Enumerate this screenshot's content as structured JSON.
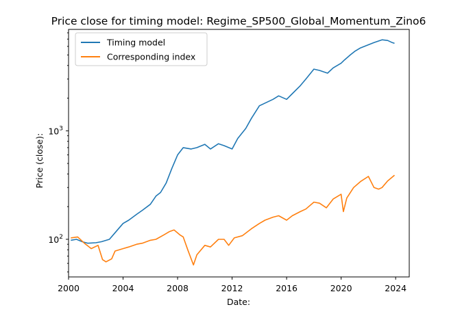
{
  "chart_data": {
    "type": "line",
    "title": "Price close for timing model: Regime_SP500_Global_Momentum_Zino6",
    "xlabel": "Date:",
    "ylabel": "Price (close):",
    "yscale": "log",
    "xlim": [
      "2000-01-01",
      "2024-12-31"
    ],
    "ylim": [
      45,
      8600
    ],
    "x_ticks": [
      "2000",
      "2004",
      "2008",
      "2012",
      "2016",
      "2020",
      "2024"
    ],
    "y_ticks": [
      {
        "base": "10",
        "exp": "2",
        "value": 100
      },
      {
        "base": "10",
        "exp": "3",
        "value": 1000
      }
    ],
    "legend": {
      "position": "top-left"
    },
    "grid": false,
    "series": [
      {
        "name": "Timing model",
        "color": "#1f77b4",
        "points": [
          [
            "2000-03-01",
            98
          ],
          [
            "2000-08-01",
            100
          ],
          [
            "2001-01-01",
            95
          ],
          [
            "2001-06-01",
            92
          ],
          [
            "2002-01-01",
            93
          ],
          [
            "2002-06-01",
            95
          ],
          [
            "2003-01-01",
            100
          ],
          [
            "2003-06-01",
            115
          ],
          [
            "2004-01-01",
            140
          ],
          [
            "2004-06-01",
            150
          ],
          [
            "2005-01-01",
            170
          ],
          [
            "2005-06-01",
            185
          ],
          [
            "2006-01-01",
            210
          ],
          [
            "2006-06-01",
            250
          ],
          [
            "2006-10-01",
            270
          ],
          [
            "2007-03-01",
            330
          ],
          [
            "2007-08-01",
            450
          ],
          [
            "2008-01-01",
            600
          ],
          [
            "2008-06-01",
            700
          ],
          [
            "2009-01-01",
            680
          ],
          [
            "2009-06-01",
            700
          ],
          [
            "2010-01-01",
            750
          ],
          [
            "2010-06-01",
            680
          ],
          [
            "2011-01-01",
            760
          ],
          [
            "2011-06-01",
            730
          ],
          [
            "2012-01-01",
            680
          ],
          [
            "2012-06-01",
            850
          ],
          [
            "2013-01-01",
            1050
          ],
          [
            "2013-06-01",
            1300
          ],
          [
            "2014-01-01",
            1700
          ],
          [
            "2014-06-01",
            1800
          ],
          [
            "2015-01-01",
            1950
          ],
          [
            "2015-06-01",
            2100
          ],
          [
            "2016-01-01",
            1950
          ],
          [
            "2016-06-01",
            2200
          ],
          [
            "2017-01-01",
            2600
          ],
          [
            "2017-06-01",
            3000
          ],
          [
            "2018-01-01",
            3700
          ],
          [
            "2018-06-01",
            3600
          ],
          [
            "2019-01-01",
            3400
          ],
          [
            "2019-06-01",
            3800
          ],
          [
            "2020-01-01",
            4200
          ],
          [
            "2020-04-01",
            4500
          ],
          [
            "2020-09-01",
            5000
          ],
          [
            "2021-01-01",
            5400
          ],
          [
            "2021-06-01",
            5800
          ],
          [
            "2022-01-01",
            6200
          ],
          [
            "2022-06-01",
            6500
          ],
          [
            "2023-01-01",
            6900
          ],
          [
            "2023-06-01",
            6800
          ],
          [
            "2023-10-01",
            6500
          ],
          [
            "2023-12-01",
            6400
          ]
        ]
      },
      {
        "name": "Corresponding index",
        "color": "#ff7f0e",
        "points": [
          [
            "2000-03-01",
            103
          ],
          [
            "2000-09-01",
            105
          ],
          [
            "2001-03-01",
            92
          ],
          [
            "2001-09-01",
            82
          ],
          [
            "2002-03-01",
            88
          ],
          [
            "2002-07-01",
            65
          ],
          [
            "2002-10-01",
            62
          ],
          [
            "2003-03-01",
            66
          ],
          [
            "2003-06-01",
            78
          ],
          [
            "2004-01-01",
            82
          ],
          [
            "2004-06-01",
            85
          ],
          [
            "2005-01-01",
            90
          ],
          [
            "2005-06-01",
            92
          ],
          [
            "2006-01-01",
            98
          ],
          [
            "2006-06-01",
            100
          ],
          [
            "2007-01-01",
            110
          ],
          [
            "2007-06-01",
            118
          ],
          [
            "2007-10-01",
            122
          ],
          [
            "2008-03-01",
            110
          ],
          [
            "2008-06-01",
            105
          ],
          [
            "2008-10-01",
            80
          ],
          [
            "2009-03-01",
            58
          ],
          [
            "2009-06-01",
            72
          ],
          [
            "2010-01-01",
            88
          ],
          [
            "2010-06-01",
            85
          ],
          [
            "2011-01-01",
            100
          ],
          [
            "2011-06-01",
            100
          ],
          [
            "2011-10-01",
            88
          ],
          [
            "2012-03-01",
            103
          ],
          [
            "2012-10-01",
            108
          ],
          [
            "2013-06-01",
            125
          ],
          [
            "2014-01-01",
            140
          ],
          [
            "2014-06-01",
            150
          ],
          [
            "2015-01-01",
            160
          ],
          [
            "2015-06-01",
            165
          ],
          [
            "2016-01-01",
            150
          ],
          [
            "2016-06-01",
            165
          ],
          [
            "2017-01-01",
            180
          ],
          [
            "2017-06-01",
            190
          ],
          [
            "2018-01-01",
            220
          ],
          [
            "2018-06-01",
            215
          ],
          [
            "2018-12-01",
            195
          ],
          [
            "2019-06-01",
            235
          ],
          [
            "2020-01-01",
            260
          ],
          [
            "2020-03-01",
            180
          ],
          [
            "2020-06-01",
            240
          ],
          [
            "2020-12-01",
            300
          ],
          [
            "2021-06-01",
            340
          ],
          [
            "2022-01-01",
            380
          ],
          [
            "2022-06-01",
            300
          ],
          [
            "2022-10-01",
            290
          ],
          [
            "2023-01-01",
            300
          ],
          [
            "2023-06-01",
            345
          ],
          [
            "2023-12-01",
            390
          ]
        ]
      }
    ]
  }
}
